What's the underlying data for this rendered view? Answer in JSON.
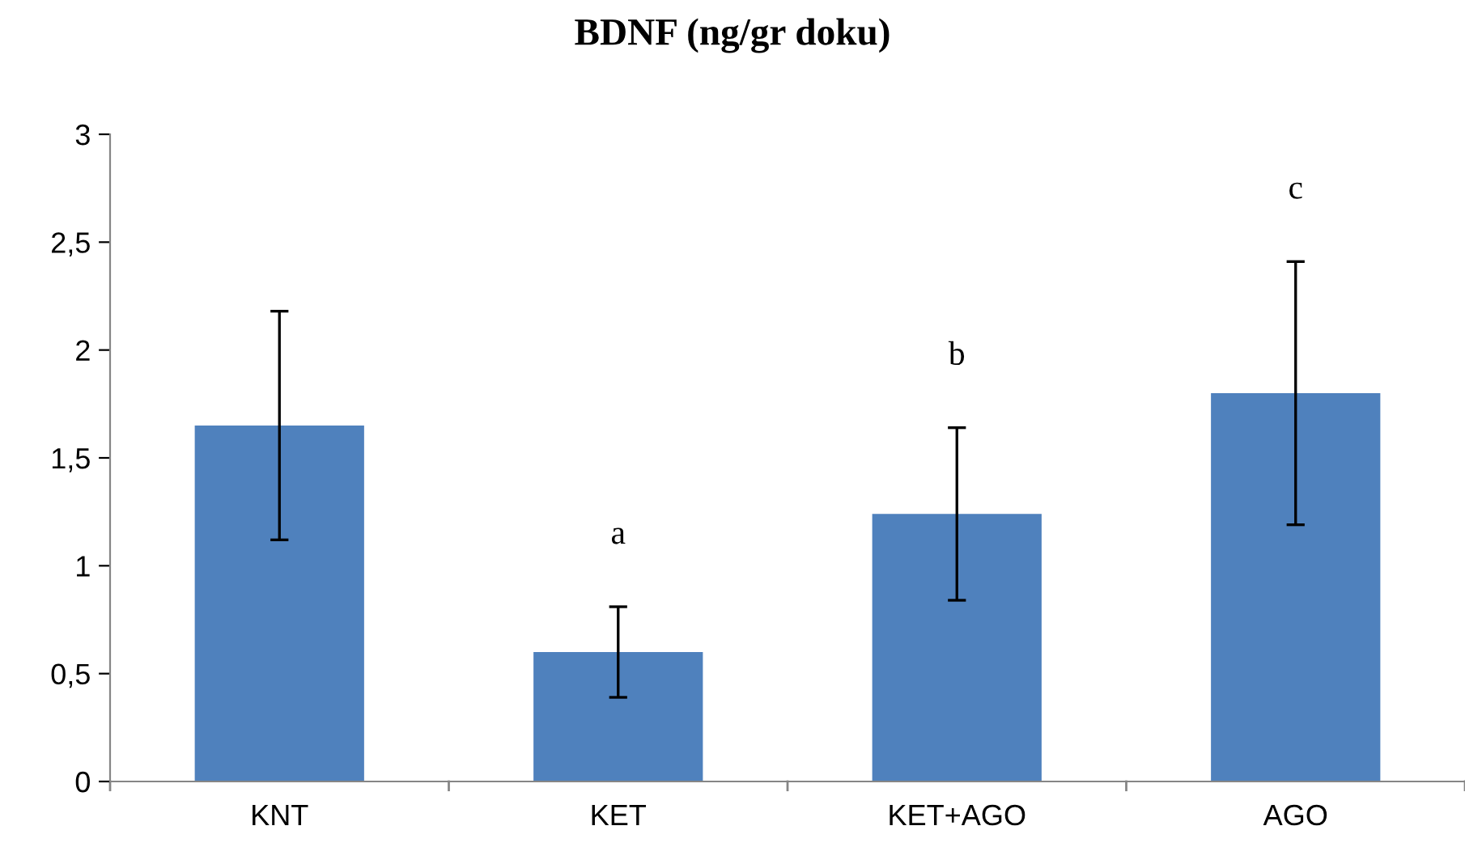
{
  "chart_data": {
    "type": "bar",
    "title": "BDNF (ng/gr doku)",
    "categories": [
      "KNT",
      "KET",
      "KET+AGO",
      "AGO"
    ],
    "values": [
      1.65,
      0.6,
      1.24,
      1.8
    ],
    "errors": [
      0.53,
      0.21,
      0.4,
      0.61
    ],
    "color": "#4f81bd",
    "ylim": [
      0,
      3
    ],
    "yticks": [
      0,
      {
        "value": 0.5,
        "label": "0,5"
      },
      1,
      {
        "value": 1.5,
        "label": "1,5"
      },
      2,
      {
        "value": 2.5,
        "label": "2,5"
      },
      3
    ],
    "annotations": [
      "a",
      "b",
      "c"
    ],
    "grid": false,
    "legend": false
  }
}
